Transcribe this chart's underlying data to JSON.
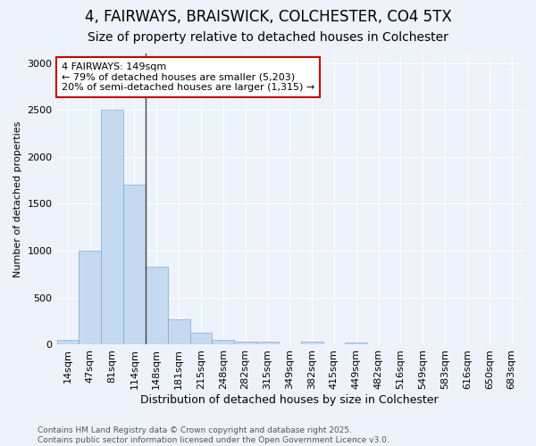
{
  "title1": "4, FAIRWAYS, BRAISWICK, COLCHESTER, CO4 5TX",
  "title2": "Size of property relative to detached houses in Colchester",
  "xlabel": "Distribution of detached houses by size in Colchester",
  "ylabel": "Number of detached properties",
  "categories": [
    "14sqm",
    "47sqm",
    "81sqm",
    "114sqm",
    "148sqm",
    "181sqm",
    "215sqm",
    "248sqm",
    "282sqm",
    "315sqm",
    "349sqm",
    "382sqm",
    "415sqm",
    "449sqm",
    "482sqm",
    "516sqm",
    "549sqm",
    "583sqm",
    "616sqm",
    "650sqm",
    "683sqm"
  ],
  "values": [
    50,
    1000,
    2500,
    1700,
    830,
    270,
    130,
    55,
    30,
    35,
    0,
    30,
    0,
    20,
    0,
    0,
    0,
    0,
    0,
    0,
    0
  ],
  "bar_color": "#c5d9f0",
  "bar_edge_color": "#7aafd4",
  "vline_x_index": 3.5,
  "annotation_text": "4 FAIRWAYS: 149sqm\n← 79% of detached houses are smaller (5,203)\n20% of semi-detached houses are larger (1,315) →",
  "annotation_box_color": "#ffffff",
  "annotation_box_edge_color": "#cc0000",
  "ylim": [
    0,
    3100
  ],
  "yticks": [
    0,
    500,
    1000,
    1500,
    2000,
    2500,
    3000
  ],
  "footer_text": "Contains HM Land Registry data © Crown copyright and database right 2025.\nContains public sector information licensed under the Open Government Licence v3.0.",
  "background_color": "#eef2fa",
  "grid_color": "#ffffff",
  "title1_fontsize": 12,
  "title2_fontsize": 10,
  "xlabel_fontsize": 9,
  "ylabel_fontsize": 8,
  "tick_fontsize": 8,
  "annotation_fontsize": 8,
  "footer_fontsize": 6.5
}
